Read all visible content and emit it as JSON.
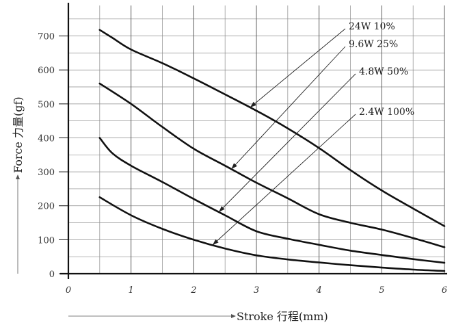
{
  "chart_data": {
    "type": "line",
    "xlabel": "Stroke 行程(mm)",
    "ylabel": "Force 力量(gf)",
    "xlim": [
      0,
      6
    ],
    "ylim": [
      0,
      800
    ],
    "x_ticks": [
      "0",
      "1",
      "2",
      "3",
      "4",
      "5",
      "6"
    ],
    "y_ticks": [
      "0",
      "100",
      "200",
      "300",
      "400",
      "500",
      "600",
      "700"
    ],
    "grid": true,
    "series": [
      {
        "name": "24W 10%",
        "x": [
          0.5,
          0.7,
          1.0,
          1.5,
          2.0,
          2.5,
          3.0,
          3.5,
          4.0,
          4.5,
          5.0,
          5.5,
          6.0
        ],
        "y": [
          718,
          695,
          660,
          620,
          575,
          528,
          480,
          428,
          370,
          305,
          245,
          192,
          140
        ],
        "leader_x": 2.9
      },
      {
        "name": "9.6W 25%",
        "x": [
          0.5,
          1.0,
          1.5,
          2.0,
          2.5,
          3.0,
          3.5,
          4.0,
          4.5,
          5.0,
          5.5,
          6.0
        ],
        "y": [
          560,
          500,
          432,
          368,
          318,
          268,
          222,
          175,
          150,
          130,
          105,
          78
        ],
        "leader_x": 2.6
      },
      {
        "name": "4.8W 50%",
        "x": [
          0.5,
          0.7,
          1.0,
          1.5,
          2.0,
          2.5,
          3.0,
          3.5,
          4.0,
          4.5,
          5.0,
          5.5,
          6.0
        ],
        "y": [
          400,
          355,
          318,
          270,
          220,
          172,
          125,
          103,
          85,
          68,
          55,
          43,
          32
        ],
        "leader_x": 2.4
      },
      {
        "name": "2.4W 100%",
        "x": [
          0.5,
          1.0,
          1.5,
          2.0,
          2.5,
          3.0,
          3.5,
          4.0,
          4.5,
          5.0,
          5.5,
          6.0
        ],
        "y": [
          225,
          172,
          132,
          100,
          74,
          54,
          42,
          33,
          25,
          18,
          12,
          8
        ],
        "leader_x": 2.3
      }
    ]
  }
}
